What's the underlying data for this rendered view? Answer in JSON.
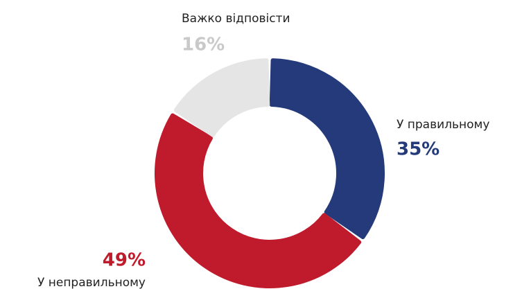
{
  "chart_data": {
    "type": "pie",
    "categories": [
      "У правильному",
      "У неправильному",
      "Важко відповісти"
    ],
    "values": [
      35,
      49,
      16
    ],
    "value_labels": [
      "35%",
      "49%",
      "16%"
    ],
    "colors": [
      "#243a7a",
      "#bf1b2c",
      "#e6e5e6"
    ]
  }
}
